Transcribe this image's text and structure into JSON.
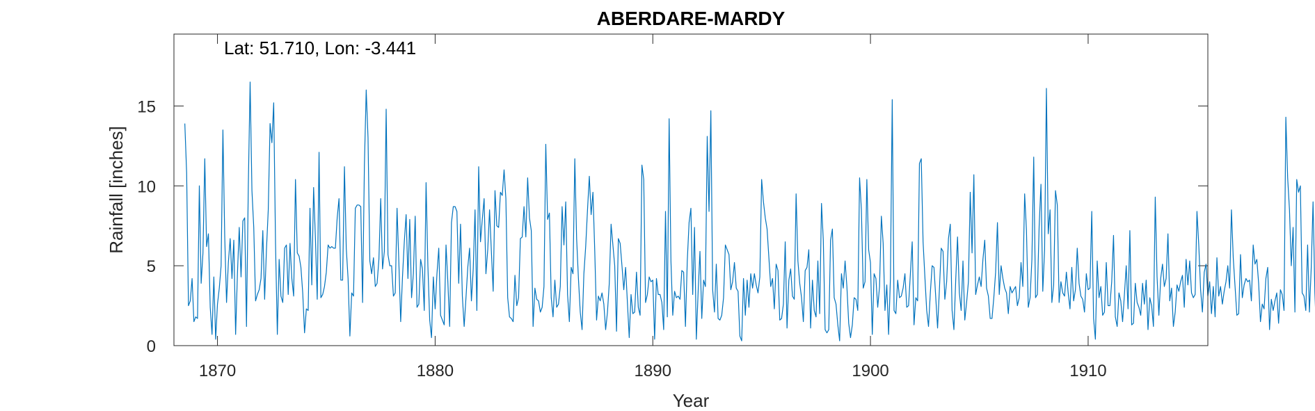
{
  "chart_data": {
    "type": "line",
    "title": "ABERDARE-MARDY",
    "xlabel": "Year",
    "ylabel": "Rainfall [inches]",
    "annotation": "Lat: 51.710, Lon: -3.441",
    "xlim": [
      1868,
      1915.5
    ],
    "ylim": [
      0,
      19.5
    ],
    "xticks": [
      1870,
      1880,
      1890,
      1900,
      1910
    ],
    "yticks": [
      0,
      5,
      10,
      15
    ],
    "grid": false,
    "line_color": "#0072BD",
    "series": [
      {
        "x_start": 1868.5,
        "x_step": 0.0833333,
        "values": [
          13.9,
          10.8,
          2.5,
          2.8,
          4.2,
          1.5,
          1.8,
          1.7,
          10.0,
          3.9,
          5.8,
          11.7,
          6.2,
          7.0,
          2.4,
          0.7,
          4.3,
          0.4,
          2.6,
          3.6,
          5.0,
          13.5,
          6.8,
          2.7,
          5.2,
          6.7,
          4.2,
          6.6,
          0.7,
          4.5,
          7.4,
          4.3,
          7.8,
          8.0,
          1.2,
          10.0,
          16.5,
          9.7,
          7.4,
          2.8,
          3.2,
          3.5,
          4.2,
          7.2,
          2.9,
          6.0,
          8.5,
          13.9,
          12.7,
          15.2,
          6.4,
          0.7,
          5.4,
          3.1,
          2.7,
          6.1,
          6.3,
          3.2,
          6.4,
          4.2,
          3.1,
          10.4,
          5.8,
          5.6,
          4.9,
          3.3,
          0.8,
          2.3,
          2.2,
          8.6,
          3.8,
          9.9,
          6.7,
          2.9,
          12.1,
          3.0,
          3.2,
          3.7,
          4.6,
          6.3,
          6.1,
          6.2,
          6.1,
          6.1,
          8.0,
          9.2,
          4.1,
          4.1,
          11.2,
          6.1,
          4.2,
          0.6,
          3.3,
          3.1,
          8.6,
          8.8,
          8.8,
          8.7,
          2.7,
          11.3,
          16.0,
          13.0,
          5.3,
          4.5,
          5.5,
          3.7,
          3.9,
          5.4,
          9.2,
          4.8,
          5.9,
          14.8,
          5.7,
          5.0,
          5.0,
          3.1,
          3.3,
          8.6,
          5.2,
          1.5,
          4.3,
          6.5,
          8.2,
          4.2,
          7.9,
          3.0,
          4.5,
          8.1,
          2.4,
          2.6,
          5.4,
          4.8,
          2.2,
          10.2,
          5.0,
          1.6,
          0.5,
          4.3,
          2.3,
          4.5,
          6.1,
          1.9,
          1.6,
          1.3,
          6.3,
          4.0,
          1.2,
          7.7,
          8.7,
          8.7,
          8.4,
          3.9,
          7.6,
          3.1,
          1.2,
          3.0,
          4.9,
          6.1,
          2.8,
          4.8,
          8.5,
          2.2,
          11.2,
          6.5,
          7.9,
          9.2,
          4.5,
          6.0,
          8.5,
          5.9,
          3.4,
          9.7,
          7.5,
          7.4,
          9.6,
          9.4,
          11.0,
          9.2,
          3.0,
          1.8,
          1.7,
          1.5,
          4.4,
          2.5,
          3.0,
          6.7,
          6.8,
          8.7,
          6.8,
          10.5,
          8.0,
          7.2,
          1.2,
          3.6,
          2.9,
          2.8,
          2.1,
          2.4,
          3.7,
          12.6,
          7.9,
          8.3,
          3.0,
          1.8,
          4.1,
          2.4,
          2.6,
          3.7,
          8.7,
          6.3,
          9.0,
          3.2,
          1.5,
          4.9,
          4.5,
          11.7,
          6.7,
          4.2,
          2.1,
          1.0,
          4.5,
          6.2,
          8.5,
          10.6,
          8.2,
          9.6,
          5.9,
          1.6,
          3.1,
          2.8,
          3.3,
          2.6,
          1.0,
          2.1,
          3.9,
          7.6,
          6.3,
          5.0,
          0.9,
          6.7,
          6.4,
          5.0,
          3.5,
          4.9,
          2.7,
          0.5,
          3.2,
          2.0,
          2.1,
          4.6,
          2.4,
          1.9,
          11.3,
          10.4,
          2.7,
          3.2,
          4.3,
          4.0,
          4.1,
          0.4,
          4.2,
          3.2,
          3.2,
          2.7,
          1.0,
          8.4,
          1.8,
          14.2,
          5.3,
          1.9,
          3.4,
          3.0,
          3.1,
          2.9,
          4.7,
          4.6,
          1.2,
          5.3,
          7.7,
          8.6,
          3.2,
          7.4,
          0.4,
          3.4,
          5.9,
          1.7,
          4.1,
          3.7,
          13.1,
          8.4,
          14.7,
          3.5,
          2.1,
          5.1,
          1.7,
          1.6,
          1.9,
          3.0,
          6.3,
          6.0,
          5.7,
          3.5,
          4.0,
          5.2,
          3.6,
          3.4,
          0.6,
          0.3,
          4.2,
          1.9,
          4.1,
          2.4,
          4.5,
          3.6,
          4.5,
          3.8,
          3.3,
          4.3,
          10.4,
          9.0,
          8.0,
          7.3,
          5.5,
          3.7,
          4.2,
          2.3,
          5.1,
          4.7,
          1.6,
          1.7,
          2.6,
          6.5,
          1.1,
          4.1,
          4.8,
          3.1,
          2.9,
          9.5,
          5.3,
          3.9,
          3.0,
          1.5,
          4.7,
          4.9,
          6.0,
          1.1,
          4.1,
          2.2,
          1.8,
          5.3,
          2.0,
          8.9,
          6.6,
          1.0,
          0.8,
          1.0,
          6.6,
          7.3,
          3.0,
          2.6,
          1.3,
          0.3,
          4.5,
          3.6,
          5.3,
          3.7,
          1.4,
          0.5,
          1.3,
          3.0,
          2.9,
          2.2,
          10.5,
          8.5,
          3.6,
          4.0,
          10.4,
          6.0,
          5.2,
          0.7,
          4.5,
          4.2,
          2.4,
          3.7,
          8.1,
          6.4,
          2.2,
          3.8,
          0.7,
          4.2,
          15.4,
          2.2,
          2.0,
          4.1,
          3.0,
          3.1,
          3.6,
          4.5,
          2.4,
          2.5,
          4.5,
          6.5,
          1.3,
          3.0,
          2.8,
          11.4,
          11.7,
          6.5,
          4.3,
          2.2,
          1.2,
          3.3,
          5.0,
          4.9,
          3.0,
          1.1,
          3.5,
          6.1,
          5.9,
          2.9,
          4.0,
          6.7,
          7.6,
          2.2,
          1.0,
          4.1,
          6.8,
          3.3,
          2.2,
          5.3,
          1.6,
          2.7,
          4.0,
          9.6,
          5.8,
          10.7,
          3.2,
          3.8,
          4.3,
          3.7,
          5.4,
          6.6,
          3.6,
          3.1,
          1.7,
          1.7,
          3.0,
          4.6,
          7.7,
          3.2,
          5.0,
          4.2,
          3.6,
          3.3,
          2.0,
          3.7,
          3.3,
          3.5,
          3.7,
          2.5,
          3.0,
          5.2,
          3.7,
          9.5,
          7.2,
          2.4,
          3.0,
          5.4,
          11.8,
          3.0,
          3.2,
          7.5,
          10.1,
          3.4,
          6.0,
          16.1,
          7.0,
          8.5,
          2.7,
          3.8,
          9.7,
          8.8,
          2.7,
          4.0,
          3.3,
          3.1,
          4.6,
          3.3,
          2.3,
          4.9,
          2.8,
          3.5,
          6.1,
          3.9,
          3.1,
          2.9,
          2.1,
          4.5,
          3.5,
          3.6,
          8.4,
          1.7,
          0.4,
          5.3,
          3.0,
          3.7,
          1.9,
          2.1,
          5.2,
          2.5,
          2.5,
          4.0,
          6.9,
          1.8,
          1.2,
          3.3,
          2.8,
          1.5,
          3.2,
          5.0,
          2.3,
          7.2,
          1.3,
          1.4,
          3.9,
          2.7,
          2.4,
          1.9,
          3.9,
          2.6,
          4.1,
          1.0,
          3.0,
          2.5,
          1.2,
          9.3,
          4.3,
          1.9,
          4.2,
          5.1,
          3.7,
          4.2,
          7.0,
          2.8,
          3.6,
          1.2,
          2.1,
          3.8,
          3.4,
          4.0,
          4.4,
          2.4,
          5.4,
          3.8,
          5.3,
          3.3,
          3.0,
          3.2,
          8.4,
          6.3,
          3.5,
          2.1,
          4.6,
          5.1,
          3.1,
          4.0,
          2.0,
          3.7,
          1.8,
          5.5,
          3.1,
          3.7,
          2.6,
          3.4,
          4.0,
          5.0,
          3.6,
          8.5,
          5.5,
          3.7,
          1.9,
          2.0,
          5.7,
          3.0,
          3.8,
          4.2,
          4.0,
          4.1,
          2.8,
          6.3,
          5.1,
          5.4,
          3.9,
          1.5,
          2.6,
          2.3,
          4.2,
          4.9,
          1.0,
          2.9,
          2.2,
          2.8,
          3.3,
          1.4,
          3.5,
          3.2,
          2.2,
          14.3,
          10.5,
          8.5,
          5.0,
          7.4,
          2.1,
          10.4,
          9.6,
          10.0,
          3.3,
          3.1,
          2.2,
          6.3,
          2.1,
          4.9,
          9.0,
          3.3,
          0.3,
          4.8,
          6.8,
          11.8,
          9.6,
          7.5,
          4.2,
          2.6,
          1.2,
          3.5,
          8.8,
          1.0,
          3.3,
          0.5,
          3.9,
          4.3,
          4.8,
          5.3,
          6.4,
          17.7,
          10.8,
          6.9,
          2.5,
          12.1,
          2.4,
          2.9,
          3.7,
          1.1,
          5.6,
          3.0,
          7.3,
          11.9,
          1.3,
          4.7,
          6.4,
          11.7,
          11.6,
          6.8,
          4.8,
          11.8,
          8.0,
          1.2,
          2.7,
          4.4,
          4.7,
          9.5,
          9.7,
          6.4,
          2.8,
          6.4,
          12.7,
          7.5,
          5.5,
          2.4,
          4.2,
          3.2,
          6.5,
          2.7,
          3.5,
          4.0,
          6.6,
          12.9
        ]
      }
    ]
  }
}
